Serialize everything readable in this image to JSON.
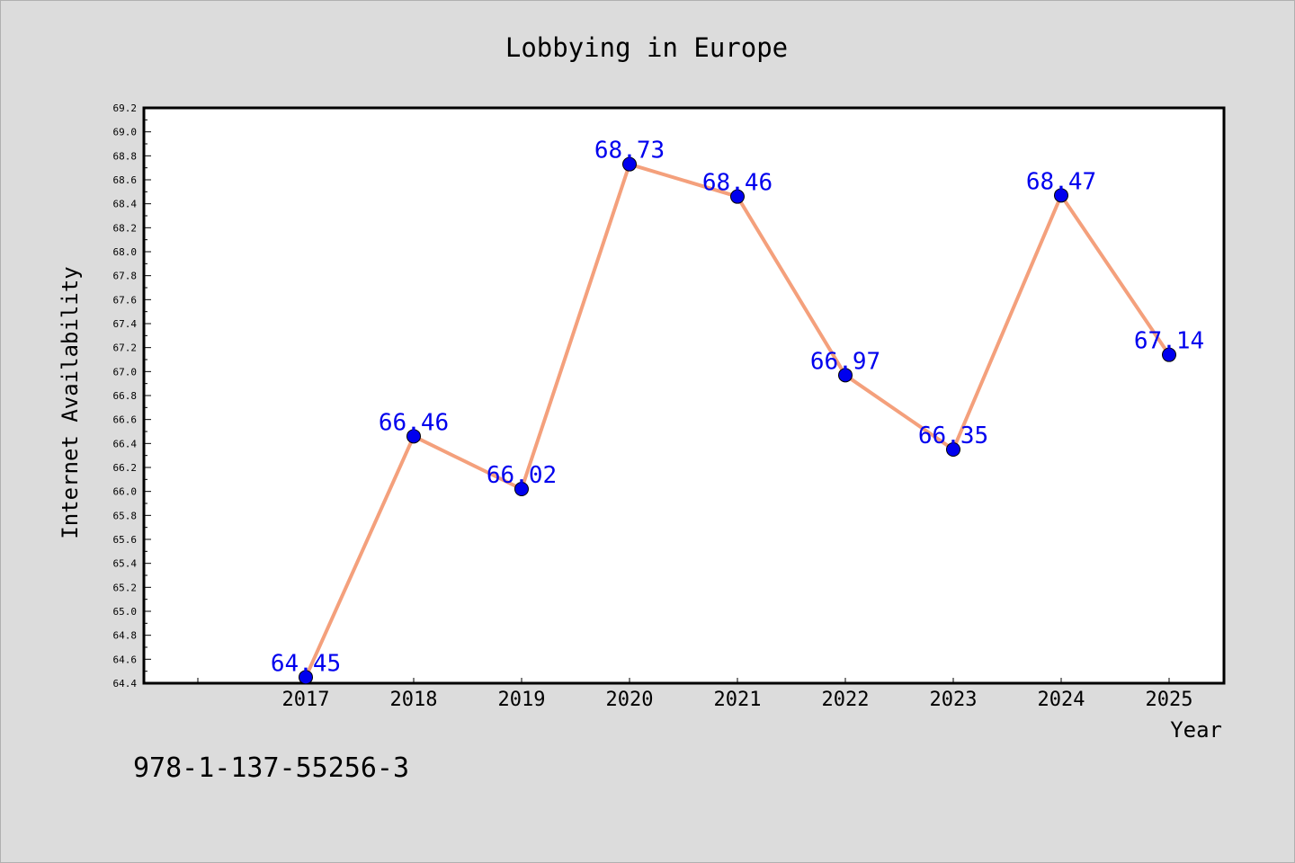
{
  "chart_data": {
    "type": "line",
    "title": "Lobbying in Europe",
    "xlabel": "Year",
    "ylabel": "Internet Availability",
    "x": [
      "2017",
      "2018",
      "2019",
      "2020",
      "2021",
      "2022",
      "2023",
      "2024",
      "2025"
    ],
    "series": [
      {
        "values": [
          64.45,
          66.46,
          66.02,
          68.73,
          68.46,
          66.97,
          66.35,
          68.47,
          67.14
        ],
        "data_labels": [
          "64.45",
          "66.46",
          "66.02",
          "68.73",
          "68.46",
          "66.97",
          "66.35",
          "68.47",
          "67.14"
        ],
        "line_color": "#f4a07c",
        "marker_color": "#0000ee",
        "label_color": "#0000ee"
      }
    ],
    "ylim": [
      64.4,
      69.2
    ],
    "yticks": [
      "64.4",
      "64.6",
      "64.8",
      "65.0",
      "65.2",
      "65.4",
      "65.6",
      "65.8",
      "66.0",
      "66.2",
      "66.4",
      "66.6",
      "66.8",
      "67.0",
      "67.2",
      "67.4",
      "67.6",
      "67.8",
      "68.0",
      "68.2",
      "68.4",
      "68.6",
      "68.8",
      "69.0",
      "69.2"
    ],
    "grid": false,
    "legend": "none"
  },
  "annotation": {
    "isbn": "978-1-137-55256-3"
  },
  "colors": {
    "background": "#dcdcdc",
    "plot_background": "#ffffff",
    "axis": "#000000"
  }
}
